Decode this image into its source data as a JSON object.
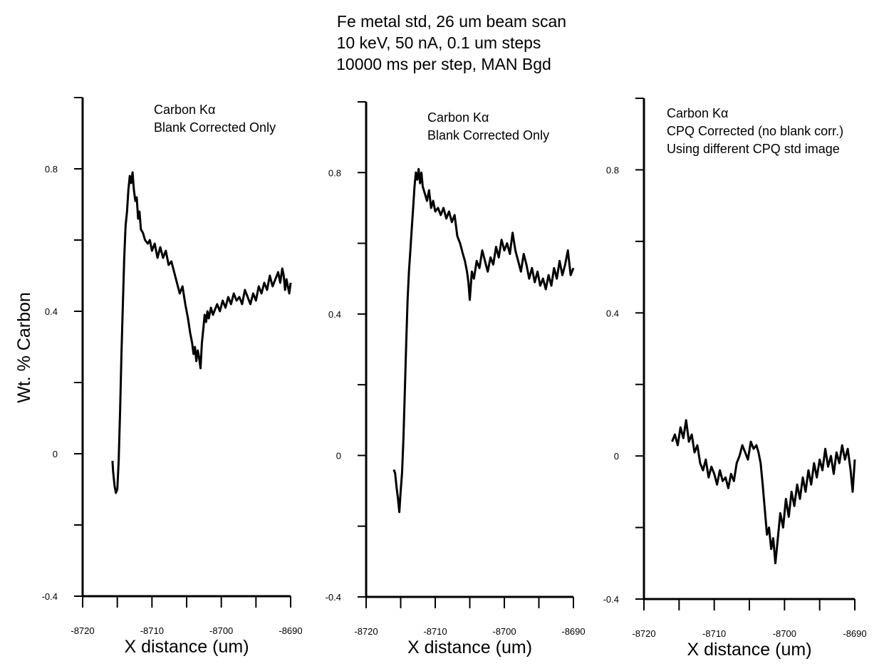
{
  "figure": {
    "title_lines": [
      "Fe metal std, 26 um beam scan",
      "10 keV, 50 nA, 0.1 um steps",
      "10000 ms per step, MAN Bgd"
    ],
    "ylabel": "Wt. % Carbon"
  },
  "chart_data": [
    {
      "type": "line",
      "annotation_lines": [
        "Carbon Kα",
        "Blank Corrected Only"
      ],
      "xlabel": "X distance (um)",
      "ylabel": "Wt. % Carbon",
      "xlim": [
        -8720,
        -8690
      ],
      "ylim": [
        -0.4,
        1.0
      ],
      "xticks": [
        -8720,
        -8710,
        -8700,
        -8690
      ],
      "yticks": [
        -0.4,
        0,
        0.4,
        0.8
      ],
      "grid": false,
      "series": [
        {
          "x": [
            -8715.7,
            -8715.6,
            -8715.4,
            -8715.2,
            -8715.0,
            -8714.8,
            -8714.6,
            -8714.4,
            -8714.2,
            -8714.0,
            -8713.8,
            -8713.6,
            -8713.4,
            -8713.2,
            -8713.0,
            -8712.8,
            -8712.6,
            -8712.4,
            -8712.2,
            -8712.0,
            -8711.8,
            -8711.6,
            -8711.3,
            -8711.0,
            -8710.6,
            -8710.3,
            -8710.0,
            -8709.6,
            -8709.2,
            -8708.8,
            -8708.4,
            -8708.0,
            -8707.6,
            -8707.2,
            -8706.8,
            -8706.4,
            -8706.0,
            -8705.6,
            -8705.2,
            -8704.8,
            -8704.5,
            -8704.2,
            -8704.0,
            -8703.8,
            -8703.6,
            -8703.4,
            -8703.2,
            -8703.0,
            -8702.8,
            -8702.6,
            -8702.4,
            -8702.2,
            -8702.0,
            -8701.8,
            -8701.5,
            -8701.2,
            -8701.0,
            -8700.6,
            -8700.2,
            -8699.8,
            -8699.4,
            -8699.0,
            -8698.6,
            -8698.2,
            -8697.8,
            -8697.4,
            -8697.0,
            -8696.6,
            -8696.2,
            -8695.8,
            -8695.4,
            -8695.0,
            -8694.6,
            -8694.2,
            -8693.8,
            -8693.4,
            -8693.0,
            -8692.6,
            -8692.2,
            -8691.8,
            -8691.5,
            -8691.2,
            -8691.0,
            -8690.8,
            -8690.6,
            -8690.4,
            -8690.2,
            -8690.0
          ],
          "y": [
            -0.02,
            -0.05,
            -0.09,
            -0.11,
            -0.1,
            -0.02,
            0.12,
            0.28,
            0.42,
            0.55,
            0.64,
            0.68,
            0.74,
            0.78,
            0.76,
            0.79,
            0.74,
            0.71,
            0.72,
            0.66,
            0.68,
            0.63,
            0.62,
            0.6,
            0.59,
            0.6,
            0.57,
            0.59,
            0.55,
            0.58,
            0.55,
            0.57,
            0.53,
            0.54,
            0.51,
            0.48,
            0.45,
            0.47,
            0.42,
            0.38,
            0.34,
            0.31,
            0.28,
            0.3,
            0.26,
            0.29,
            0.27,
            0.24,
            0.31,
            0.35,
            0.39,
            0.37,
            0.4,
            0.38,
            0.41,
            0.39,
            0.4,
            0.42,
            0.4,
            0.43,
            0.41,
            0.44,
            0.42,
            0.45,
            0.43,
            0.44,
            0.42,
            0.46,
            0.44,
            0.42,
            0.45,
            0.43,
            0.47,
            0.45,
            0.48,
            0.46,
            0.5,
            0.47,
            0.49,
            0.51,
            0.48,
            0.52,
            0.5,
            0.46,
            0.49,
            0.47,
            0.45,
            0.48
          ]
        }
      ]
    },
    {
      "type": "line",
      "annotation_lines": [
        "Carbon Kα",
        "Blank Corrected Only"
      ],
      "xlabel": "X distance (um)",
      "xlim": [
        -8720,
        -8690
      ],
      "ylim": [
        -0.4,
        1.0
      ],
      "xticks": [
        -8720,
        -8710,
        -8700,
        -8690
      ],
      "yticks": [
        -0.4,
        0,
        0.4,
        0.8
      ],
      "grid": false,
      "series": [
        {
          "x": [
            -8716.0,
            -8715.8,
            -8715.6,
            -8715.4,
            -8715.2,
            -8715.0,
            -8714.8,
            -8714.6,
            -8714.4,
            -8714.2,
            -8714.0,
            -8713.8,
            -8713.6,
            -8713.4,
            -8713.2,
            -8713.0,
            -8712.8,
            -8712.6,
            -8712.4,
            -8712.2,
            -8712.0,
            -8711.8,
            -8711.5,
            -8711.2,
            -8710.9,
            -8710.6,
            -8710.3,
            -8710.0,
            -8709.6,
            -8709.2,
            -8708.8,
            -8708.4,
            -8708.0,
            -8707.6,
            -8707.2,
            -8706.8,
            -8706.4,
            -8706.0,
            -8705.7,
            -8705.4,
            -8705.2,
            -8705.0,
            -8704.7,
            -8704.4,
            -8704.0,
            -8703.6,
            -8703.2,
            -8702.8,
            -8702.4,
            -8702.0,
            -8701.6,
            -8701.2,
            -8700.8,
            -8700.4,
            -8700.0,
            -8699.6,
            -8699.2,
            -8698.8,
            -8698.4,
            -8698.0,
            -8697.6,
            -8697.2,
            -8696.8,
            -8696.4,
            -8696.0,
            -8695.6,
            -8695.2,
            -8694.8,
            -8694.4,
            -8694.0,
            -8693.6,
            -8693.2,
            -8692.8,
            -8692.4,
            -8692.0,
            -8691.6,
            -8691.2,
            -8690.8,
            -8690.4,
            -8690.0
          ],
          "y": [
            -0.04,
            -0.05,
            -0.09,
            -0.12,
            -0.16,
            -0.1,
            -0.05,
            0.05,
            0.18,
            0.32,
            0.44,
            0.52,
            0.58,
            0.64,
            0.7,
            0.76,
            0.8,
            0.78,
            0.81,
            0.77,
            0.8,
            0.76,
            0.74,
            0.72,
            0.75,
            0.7,
            0.72,
            0.69,
            0.7,
            0.68,
            0.7,
            0.67,
            0.69,
            0.66,
            0.68,
            0.62,
            0.6,
            0.57,
            0.55,
            0.52,
            0.49,
            0.44,
            0.52,
            0.5,
            0.55,
            0.53,
            0.58,
            0.55,
            0.52,
            0.56,
            0.54,
            0.59,
            0.56,
            0.61,
            0.58,
            0.6,
            0.57,
            0.63,
            0.58,
            0.55,
            0.52,
            0.57,
            0.54,
            0.5,
            0.53,
            0.49,
            0.52,
            0.48,
            0.5,
            0.47,
            0.51,
            0.48,
            0.53,
            0.5,
            0.55,
            0.51,
            0.54,
            0.58,
            0.51,
            0.53
          ]
        }
      ]
    },
    {
      "type": "line",
      "annotation_lines": [
        "Carbon Kα",
        "CPQ Corrected (no blank corr.)",
        "Using different CPQ std image"
      ],
      "xlabel": "X distance (um)",
      "xlim": [
        -8720,
        -8690
      ],
      "ylim": [
        -0.4,
        1.0
      ],
      "xticks": [
        -8720,
        -8710,
        -8700,
        -8690
      ],
      "yticks": [
        -0.4,
        0,
        0.4,
        0.8
      ],
      "grid": false,
      "series": [
        {
          "x": [
            -8716.0,
            -8715.6,
            -8715.2,
            -8714.8,
            -8714.4,
            -8714.0,
            -8713.6,
            -8713.2,
            -8712.8,
            -8712.4,
            -8712.0,
            -8711.6,
            -8711.2,
            -8710.8,
            -8710.4,
            -8710.0,
            -8709.6,
            -8709.2,
            -8708.8,
            -8708.4,
            -8708.0,
            -8707.6,
            -8707.2,
            -8706.8,
            -8706.4,
            -8706.0,
            -8705.6,
            -8705.2,
            -8704.8,
            -8704.4,
            -8704.0,
            -8703.7,
            -8703.4,
            -8703.1,
            -8702.8,
            -8702.5,
            -8702.2,
            -8701.9,
            -8701.6,
            -8701.3,
            -8701.0,
            -8700.6,
            -8700.2,
            -8699.8,
            -8699.4,
            -8699.0,
            -8698.6,
            -8698.2,
            -8697.8,
            -8697.4,
            -8697.0,
            -8696.6,
            -8696.2,
            -8695.8,
            -8695.4,
            -8695.0,
            -8694.6,
            -8694.2,
            -8693.8,
            -8693.4,
            -8693.0,
            -8692.6,
            -8692.2,
            -8691.8,
            -8691.4,
            -8691.0,
            -8690.6,
            -8690.3,
            -8690.0
          ],
          "y": [
            0.04,
            0.06,
            0.03,
            0.08,
            0.05,
            0.1,
            0.04,
            0.06,
            0.01,
            0.03,
            -0.02,
            -0.04,
            -0.01,
            -0.06,
            -0.03,
            -0.05,
            -0.08,
            -0.04,
            -0.07,
            -0.06,
            -0.09,
            -0.05,
            -0.07,
            -0.02,
            0.0,
            0.03,
            0.01,
            -0.01,
            0.04,
            0.02,
            0.03,
            0.01,
            -0.02,
            -0.08,
            -0.15,
            -0.22,
            -0.2,
            -0.26,
            -0.23,
            -0.3,
            -0.24,
            -0.16,
            -0.2,
            -0.12,
            -0.17,
            -0.1,
            -0.14,
            -0.08,
            -0.12,
            -0.06,
            -0.1,
            -0.04,
            -0.08,
            -0.02,
            -0.06,
            -0.01,
            -0.04,
            0.02,
            -0.03,
            0.0,
            -0.05,
            0.01,
            -0.02,
            0.03,
            -0.01,
            0.02,
            -0.04,
            -0.1,
            -0.01
          ]
        }
      ]
    }
  ]
}
